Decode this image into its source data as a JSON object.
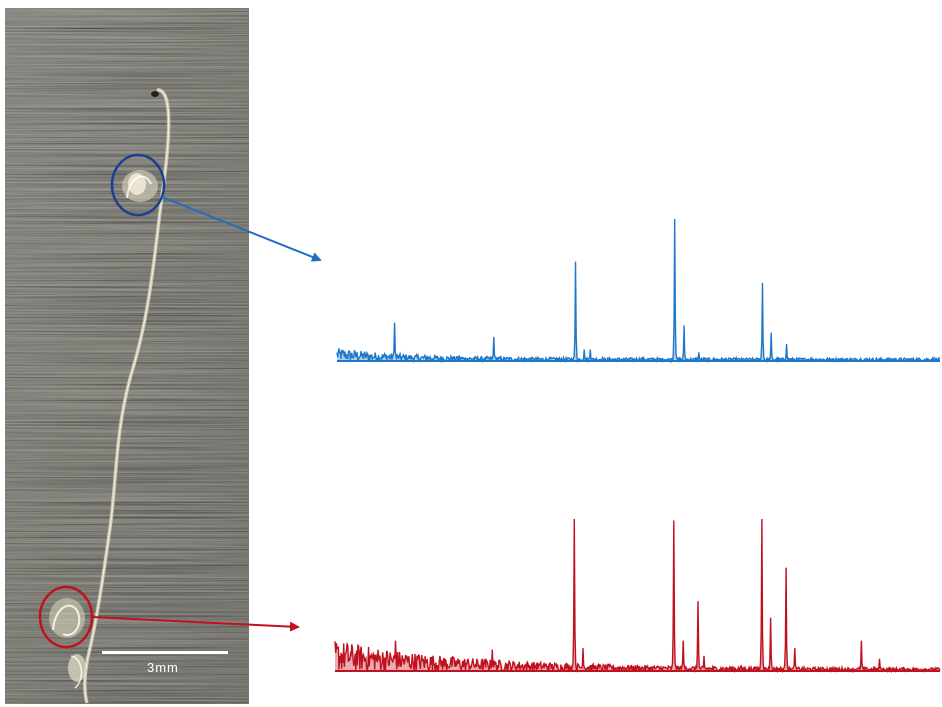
{
  "scale_bar": {
    "label": "3mm"
  },
  "colors": {
    "blue_spectrum": "#1f77c8",
    "red_spectrum": "#c0111f",
    "blue_marker": "#1c3f8f",
    "red_marker": "#c0111f",
    "metal_base": "#5e5c53"
  },
  "spectra": [
    {
      "name": "blue-spectrum",
      "color_key": "blue_spectrum",
      "peaks": [
        [
          0.095,
          0.27
        ],
        [
          0.26,
          0.17
        ],
        [
          0.395,
          0.7
        ],
        [
          0.41,
          0.08
        ],
        [
          0.42,
          0.08
        ],
        [
          0.56,
          1.0
        ],
        [
          0.575,
          0.25
        ],
        [
          0.6,
          0.06
        ],
        [
          0.705,
          0.55
        ],
        [
          0.72,
          0.2
        ],
        [
          0.745,
          0.12
        ]
      ]
    },
    {
      "name": "red-spectrum",
      "color_key": "red_spectrum",
      "peaks": [
        [
          0.1,
          0.2
        ],
        [
          0.26,
          0.14
        ],
        [
          0.395,
          1.0
        ],
        [
          0.41,
          0.15
        ],
        [
          0.56,
          0.99
        ],
        [
          0.575,
          0.2
        ],
        [
          0.6,
          0.46
        ],
        [
          0.61,
          0.1
        ],
        [
          0.705,
          1.0
        ],
        [
          0.72,
          0.35
        ],
        [
          0.745,
          0.68
        ],
        [
          0.76,
          0.15
        ],
        [
          0.87,
          0.2
        ],
        [
          0.9,
          0.08
        ]
      ]
    }
  ]
}
